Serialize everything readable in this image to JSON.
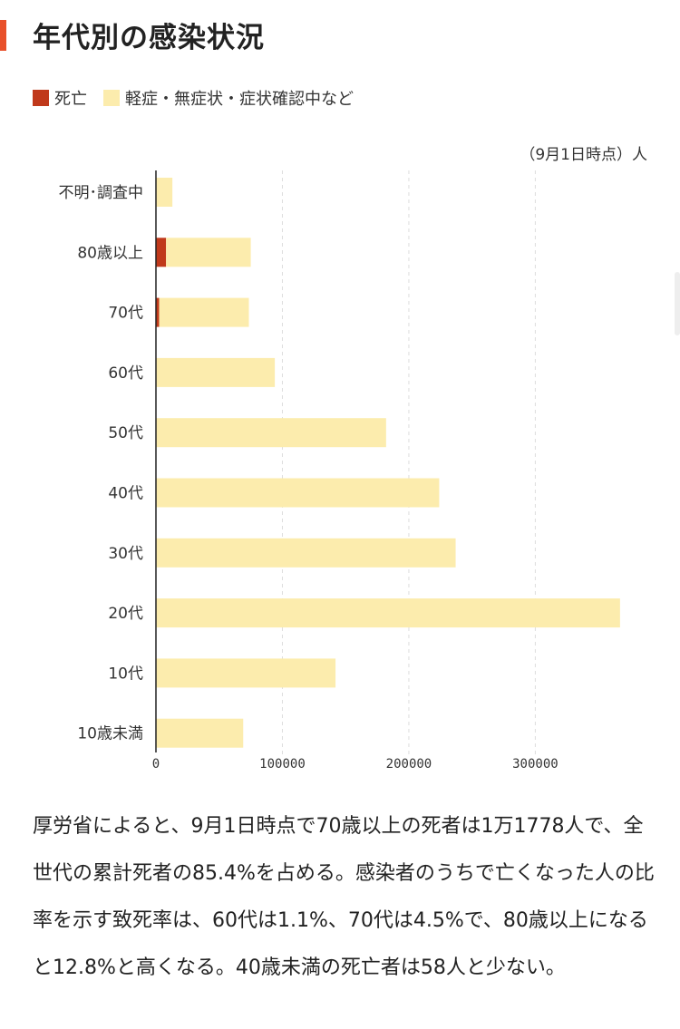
{
  "page": {
    "title": "年代別の感染状況",
    "accent_color": "#e8502a"
  },
  "legend": {
    "items": [
      {
        "label": "死亡",
        "color": "#c0391b"
      },
      {
        "label": "軽症・無症状・症状確認中など",
        "color": "#fcecad"
      }
    ]
  },
  "chart_note": "（9月1日時点）人",
  "chart_data": {
    "type": "bar",
    "orientation": "horizontal",
    "stacked": true,
    "categories": [
      "不明･調査中",
      "80歳以上",
      "70代",
      "60代",
      "50代",
      "40代",
      "30代",
      "20代",
      "10代",
      "10歳未満"
    ],
    "series": [
      {
        "name": "死亡",
        "color": "#c0391b",
        "values": [
          0,
          8000,
          2500,
          0,
          0,
          0,
          0,
          0,
          0,
          0
        ]
      },
      {
        "name": "軽症・無症状・症状確認中など",
        "color": "#fcecad",
        "values": [
          13000,
          67000,
          71000,
          94000,
          182000,
          224000,
          237000,
          367000,
          142000,
          69000
        ]
      }
    ],
    "xlim": [
      0,
      380000
    ],
    "xticks": [
      0,
      100000,
      200000,
      300000
    ],
    "xtick_labels": [
      "0",
      "100000",
      "200000",
      "300000"
    ],
    "grid": "vertical-dashed",
    "unit": "人"
  },
  "body_text": "厚労省によると、9月1日時点で70歳以上の死者は1万1778人で、全世代の累計死者の85.4%を占める。感染者のうちで亡くなった人の比率を示す致死率は、60代は1.1%、70代は4.5%で、80歳以上になると12.8%と高くなる。40歳未満の死亡者は58人と少ない。"
}
